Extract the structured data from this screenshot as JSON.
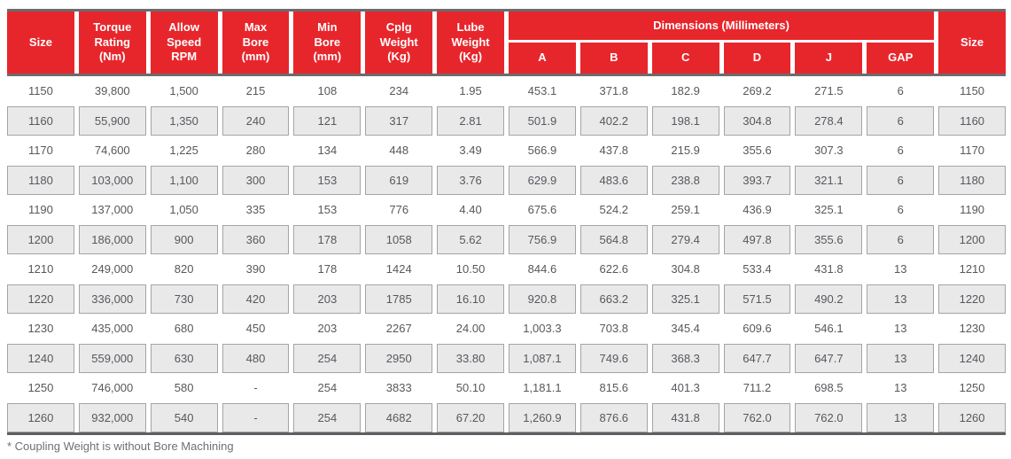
{
  "accent_color": "#e7262c",
  "alt_row_color": "#e9e9ea",
  "rule_color": "#6a6c6e",
  "table": {
    "header": {
      "size_left": "Size",
      "torque": "Torque\nRating\n(Nm)",
      "speed": "Allow\nSpeed\nRPM",
      "max_bore": "Max\nBore\n(mm)",
      "min_bore": "Min\nBore\n(mm)",
      "cplg_weight": "Cplg\nWeight\n(Kg)",
      "lube_weight": "Lube\nWeight\n(Kg)",
      "dimensions_group": "Dimensions (Millimeters)",
      "dim_a": "A",
      "dim_b": "B",
      "dim_c": "C",
      "dim_d": "D",
      "dim_j": "J",
      "gap": "GAP",
      "size_right": "Size"
    },
    "rows": [
      {
        "cells": [
          "1150",
          "39,800",
          "1,500",
          "215",
          "108",
          "234",
          "1.95",
          "453.1",
          "371.8",
          "182.9",
          "269.2",
          "271.5",
          "6",
          "1150"
        ]
      },
      {
        "cells": [
          "1160",
          "55,900",
          "1,350",
          "240",
          "121",
          "317",
          "2.81",
          "501.9",
          "402.2",
          "198.1",
          "304.8",
          "278.4",
          "6",
          "1160"
        ]
      },
      {
        "cells": [
          "1170",
          "74,600",
          "1,225",
          "280",
          "134",
          "448",
          "3.49",
          "566.9",
          "437.8",
          "215.9",
          "355.6",
          "307.3",
          "6",
          "1170"
        ]
      },
      {
        "cells": [
          "1180",
          "103,000",
          "1,100",
          "300",
          "153",
          "619",
          "3.76",
          "629.9",
          "483.6",
          "238.8",
          "393.7",
          "321.1",
          "6",
          "1180"
        ]
      },
      {
        "cells": [
          "1190",
          "137,000",
          "1,050",
          "335",
          "153",
          "776",
          "4.40",
          "675.6",
          "524.2",
          "259.1",
          "436.9",
          "325.1",
          "6",
          "1190"
        ]
      },
      {
        "cells": [
          "1200",
          "186,000",
          "900",
          "360",
          "178",
          "1058",
          "5.62",
          "756.9",
          "564.8",
          "279.4",
          "497.8",
          "355.6",
          "6",
          "1200"
        ]
      },
      {
        "cells": [
          "1210",
          "249,000",
          "820",
          "390",
          "178",
          "1424",
          "10.50",
          "844.6",
          "622.6",
          "304.8",
          "533.4",
          "431.8",
          "13",
          "1210"
        ]
      },
      {
        "cells": [
          "1220",
          "336,000",
          "730",
          "420",
          "203",
          "1785",
          "16.10",
          "920.8",
          "663.2",
          "325.1",
          "571.5",
          "490.2",
          "13",
          "1220"
        ]
      },
      {
        "cells": [
          "1230",
          "435,000",
          "680",
          "450",
          "203",
          "2267",
          "24.00",
          "1,003.3",
          "703.8",
          "345.4",
          "609.6",
          "546.1",
          "13",
          "1230"
        ]
      },
      {
        "cells": [
          "1240",
          "559,000",
          "630",
          "480",
          "254",
          "2950",
          "33.80",
          "1,087.1",
          "749.6",
          "368.3",
          "647.7",
          "647.7",
          "13",
          "1240"
        ]
      },
      {
        "cells": [
          "1250",
          "746,000",
          "580",
          "-",
          "254",
          "3833",
          "50.10",
          "1,181.1",
          "815.6",
          "401.3",
          "711.2",
          "698.5",
          "13",
          "1250"
        ]
      },
      {
        "cells": [
          "1260",
          "932,000",
          "540",
          "-",
          "254",
          "4682",
          "67.20",
          "1,260.9",
          "876.6",
          "431.8",
          "762.0",
          "762.0",
          "13",
          "1260"
        ]
      }
    ]
  },
  "footnote": "* Coupling Weight is without Bore Machining"
}
